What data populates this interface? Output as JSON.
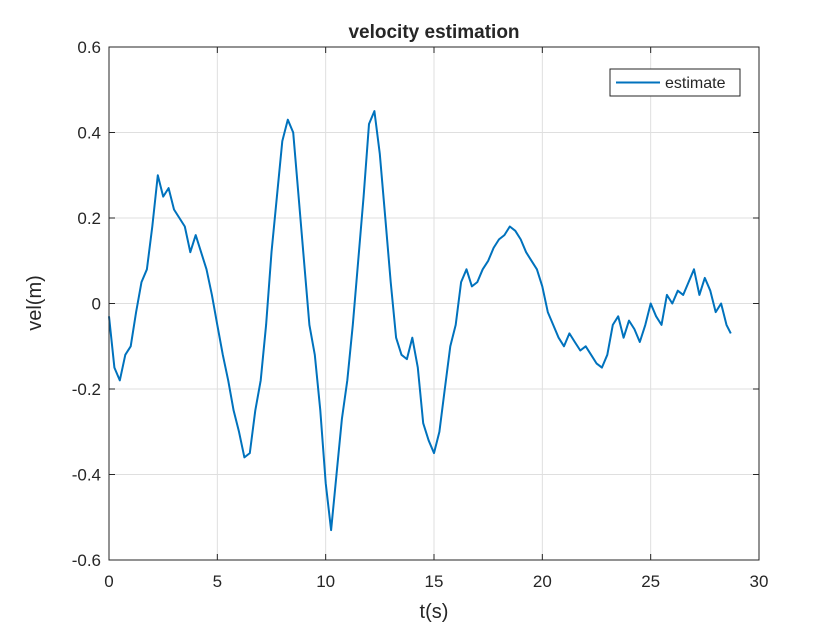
{
  "chart_data": {
    "type": "line",
    "title": "velocity estimation",
    "xlabel": "t(s)",
    "ylabel": "vel(m)",
    "xlim": [
      0,
      30
    ],
    "ylim": [
      -0.6,
      0.6
    ],
    "xticks": [
      0,
      5,
      10,
      15,
      20,
      25,
      30
    ],
    "xtick_labels": [
      "0",
      "5",
      "10",
      "15",
      "20",
      "25",
      "30"
    ],
    "yticks": [
      0.6,
      0.4,
      0.2,
      0,
      -0.2,
      -0.4,
      -0.6
    ],
    "ytick_labels": [
      "0.6",
      "0.4",
      "0.2",
      "0",
      "-0.2",
      "-0.4",
      "-0.6"
    ],
    "grid": true,
    "legend_position": "top-right",
    "colors": {
      "series": "#0072BD",
      "axis": "#262626",
      "grid": "#dfdfdf",
      "background": "#ffffff"
    },
    "series": [
      {
        "name": "estimate",
        "x": [
          0,
          0.25,
          0.5,
          0.75,
          1.0,
          1.25,
          1.5,
          1.75,
          2.0,
          2.25,
          2.5,
          2.75,
          3.0,
          3.25,
          3.5,
          3.75,
          4.0,
          4.25,
          4.5,
          4.75,
          5.0,
          5.25,
          5.5,
          5.75,
          6.0,
          6.25,
          6.5,
          6.75,
          7.0,
          7.25,
          7.5,
          7.75,
          8.0,
          8.25,
          8.5,
          8.75,
          9.0,
          9.25,
          9.5,
          9.75,
          10.0,
          10.25,
          10.5,
          10.75,
          11.0,
          11.25,
          11.5,
          11.75,
          12.0,
          12.25,
          12.5,
          12.75,
          13.0,
          13.25,
          13.5,
          13.75,
          14.0,
          14.25,
          14.5,
          14.75,
          15.0,
          15.25,
          15.5,
          15.75,
          16.0,
          16.25,
          16.5,
          16.75,
          17.0,
          17.25,
          17.5,
          17.75,
          18.0,
          18.25,
          18.5,
          18.75,
          19.0,
          19.25,
          19.5,
          19.75,
          20.0,
          20.25,
          20.5,
          20.75,
          21.0,
          21.25,
          21.5,
          21.75,
          22.0,
          22.25,
          22.5,
          22.75,
          23.0,
          23.25,
          23.5,
          23.75,
          24.0,
          24.25,
          24.5,
          24.75,
          25.0,
          25.25,
          25.5,
          25.75,
          26.0,
          26.25,
          26.5,
          26.75,
          27.0,
          27.25,
          27.5,
          27.75,
          28.0,
          28.25,
          28.5,
          28.7
        ],
        "y": [
          -0.03,
          -0.15,
          -0.18,
          -0.12,
          -0.1,
          -0.02,
          0.05,
          0.08,
          0.18,
          0.3,
          0.25,
          0.27,
          0.22,
          0.2,
          0.18,
          0.12,
          0.16,
          0.12,
          0.08,
          0.02,
          -0.05,
          -0.12,
          -0.18,
          -0.25,
          -0.3,
          -0.36,
          -0.35,
          -0.25,
          -0.18,
          -0.05,
          0.12,
          0.25,
          0.38,
          0.43,
          0.4,
          0.25,
          0.1,
          -0.05,
          -0.12,
          -0.25,
          -0.42,
          -0.53,
          -0.4,
          -0.27,
          -0.18,
          -0.05,
          0.1,
          0.25,
          0.42,
          0.45,
          0.35,
          0.2,
          0.05,
          -0.08,
          -0.12,
          -0.13,
          -0.08,
          -0.15,
          -0.28,
          -0.32,
          -0.35,
          -0.3,
          -0.2,
          -0.1,
          -0.05,
          0.05,
          0.08,
          0.04,
          0.05,
          0.08,
          0.1,
          0.13,
          0.15,
          0.16,
          0.18,
          0.17,
          0.15,
          0.12,
          0.1,
          0.08,
          0.04,
          -0.02,
          -0.05,
          -0.08,
          -0.1,
          -0.07,
          -0.09,
          -0.11,
          -0.1,
          -0.12,
          -0.14,
          -0.15,
          -0.12,
          -0.05,
          -0.03,
          -0.08,
          -0.04,
          -0.06,
          -0.09,
          -0.05,
          0.0,
          -0.03,
          -0.05,
          0.02,
          0.0,
          0.03,
          0.02,
          0.05,
          0.08,
          0.02,
          0.06,
          0.03,
          -0.02,
          0.0,
          -0.05,
          -0.07
        ]
      }
    ]
  }
}
